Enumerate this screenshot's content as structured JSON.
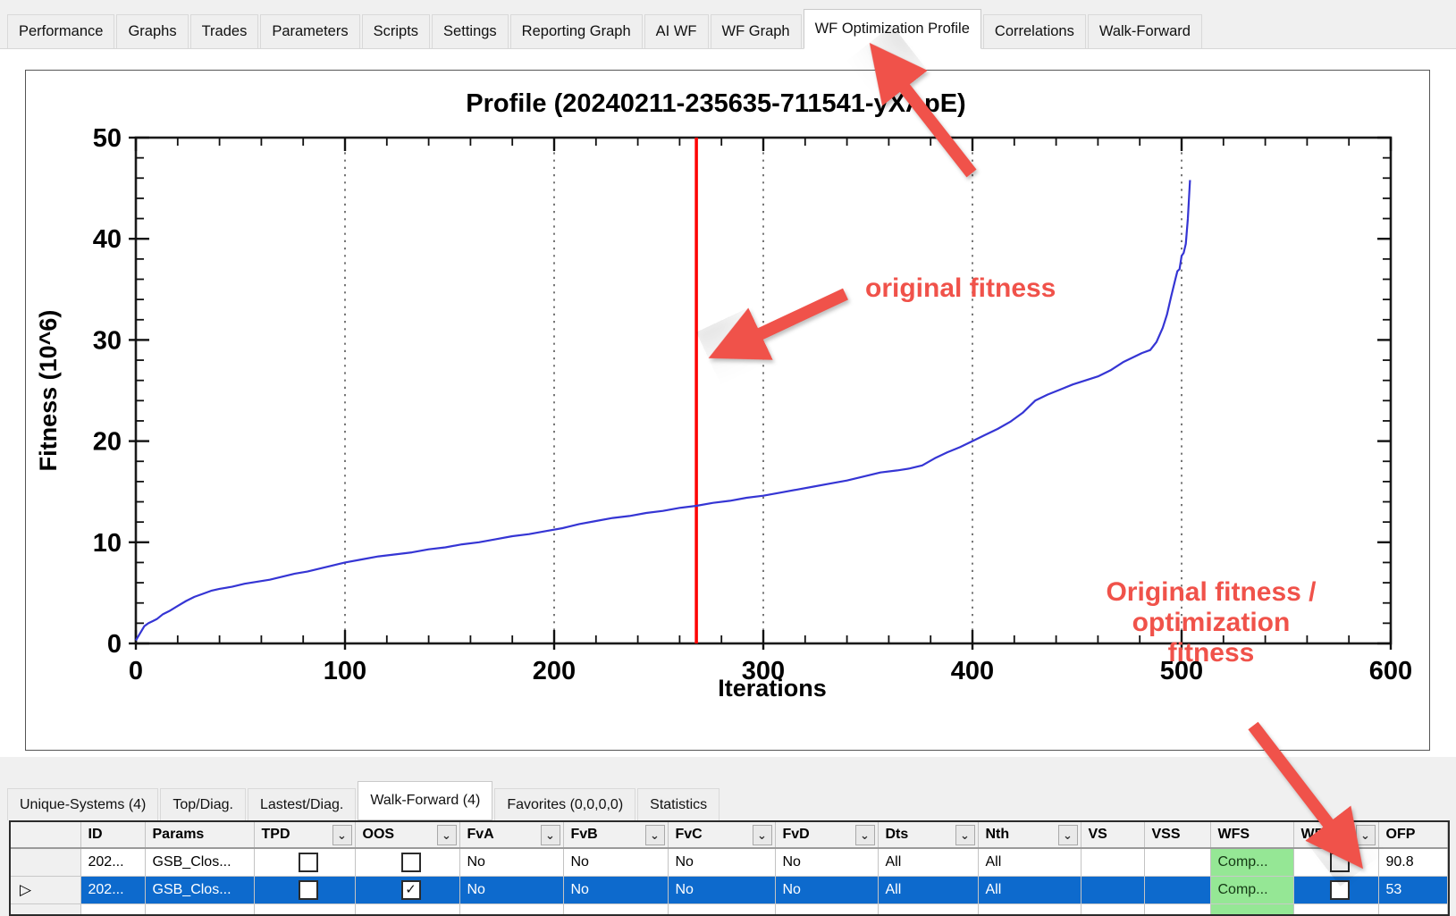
{
  "top_tabs": {
    "items": [
      {
        "label": "Performance",
        "selected": false
      },
      {
        "label": "Graphs",
        "selected": false
      },
      {
        "label": "Trades",
        "selected": false
      },
      {
        "label": "Parameters",
        "selected": false
      },
      {
        "label": "Scripts",
        "selected": false
      },
      {
        "label": "Settings",
        "selected": false
      },
      {
        "label": "Reporting Graph",
        "selected": false
      },
      {
        "label": "AI WF",
        "selected": false
      },
      {
        "label": "WF Graph",
        "selected": false
      },
      {
        "label": "WF Optimization Profile",
        "selected": true
      },
      {
        "label": "Correlations",
        "selected": false
      },
      {
        "label": "Walk-Forward",
        "selected": false
      }
    ]
  },
  "chart_data": {
    "type": "line",
    "title": "Profile (20240211-235635-711541-yXApE)",
    "xlabel": "Iterations",
    "ylabel": "Fitness (10^6)",
    "xlim": [
      0,
      600
    ],
    "ylim": [
      0,
      50
    ],
    "x_ticks": [
      0,
      100,
      200,
      300,
      400,
      500,
      600
    ],
    "y_ticks": [
      0,
      10,
      20,
      30,
      40,
      50
    ],
    "x_minor_step": 20,
    "y_minor_step": 2,
    "gridlines_x": [
      100,
      200,
      300,
      400,
      500
    ],
    "grid": "vertical-dotted-only",
    "legend": "none",
    "line_color": "#3535d4",
    "vline": {
      "x": 268,
      "color": "#fe0000",
      "meaning": "original fitness"
    },
    "series": [
      {
        "name": "sorted WF optimization fitness profile",
        "points": [
          [
            0,
            0.3
          ],
          [
            2,
            1.0
          ],
          [
            4,
            1.7
          ],
          [
            6,
            2.0
          ],
          [
            8,
            2.2
          ],
          [
            10,
            2.4
          ],
          [
            13,
            2.9
          ],
          [
            16,
            3.2
          ],
          [
            20,
            3.7
          ],
          [
            24,
            4.2
          ],
          [
            28,
            4.6
          ],
          [
            32,
            4.9
          ],
          [
            36,
            5.2
          ],
          [
            40,
            5.4
          ],
          [
            46,
            5.6
          ],
          [
            52,
            5.9
          ],
          [
            58,
            6.1
          ],
          [
            64,
            6.3
          ],
          [
            70,
            6.6
          ],
          [
            76,
            6.9
          ],
          [
            82,
            7.1
          ],
          [
            88,
            7.4
          ],
          [
            94,
            7.7
          ],
          [
            100,
            8.0
          ],
          [
            108,
            8.3
          ],
          [
            116,
            8.6
          ],
          [
            124,
            8.8
          ],
          [
            132,
            9.0
          ],
          [
            140,
            9.3
          ],
          [
            148,
            9.5
          ],
          [
            156,
            9.8
          ],
          [
            164,
            10.0
          ],
          [
            172,
            10.3
          ],
          [
            180,
            10.6
          ],
          [
            188,
            10.8
          ],
          [
            196,
            11.1
          ],
          [
            204,
            11.4
          ],
          [
            212,
            11.8
          ],
          [
            220,
            12.1
          ],
          [
            228,
            12.4
          ],
          [
            236,
            12.6
          ],
          [
            244,
            12.9
          ],
          [
            252,
            13.1
          ],
          [
            260,
            13.4
          ],
          [
            268,
            13.6
          ],
          [
            276,
            13.9
          ],
          [
            284,
            14.1
          ],
          [
            292,
            14.4
          ],
          [
            300,
            14.6
          ],
          [
            308,
            14.9
          ],
          [
            316,
            15.2
          ],
          [
            324,
            15.5
          ],
          [
            332,
            15.8
          ],
          [
            340,
            16.1
          ],
          [
            348,
            16.5
          ],
          [
            356,
            16.9
          ],
          [
            364,
            17.1
          ],
          [
            370,
            17.3
          ],
          [
            376,
            17.6
          ],
          [
            382,
            18.3
          ],
          [
            388,
            18.9
          ],
          [
            394,
            19.4
          ],
          [
            400,
            20.0
          ],
          [
            406,
            20.6
          ],
          [
            412,
            21.2
          ],
          [
            418,
            21.9
          ],
          [
            424,
            22.8
          ],
          [
            430,
            24.0
          ],
          [
            436,
            24.6
          ],
          [
            442,
            25.1
          ],
          [
            448,
            25.6
          ],
          [
            454,
            26.0
          ],
          [
            460,
            26.4
          ],
          [
            466,
            27.0
          ],
          [
            472,
            27.8
          ],
          [
            477,
            28.3
          ],
          [
            481,
            28.7
          ],
          [
            485,
            29.0
          ],
          [
            488,
            29.8
          ],
          [
            491,
            31.2
          ],
          [
            493,
            32.5
          ],
          [
            495,
            34.3
          ],
          [
            497,
            36.0
          ],
          [
            498,
            36.8
          ],
          [
            499,
            37.0
          ],
          [
            500,
            38.3
          ],
          [
            501,
            38.6
          ],
          [
            502,
            39.5
          ],
          [
            503,
            42.0
          ],
          [
            504,
            45.8
          ]
        ]
      }
    ]
  },
  "annotations": {
    "accent_color": "#f0524a",
    "original_fitness_label": "original fitness",
    "ofp_line1": "Original fitness /",
    "ofp_line2": "optimization",
    "ofp_line3": "fitness"
  },
  "bottom_tabs": {
    "items": [
      {
        "label": "Unique-Systems (4)",
        "selected": false
      },
      {
        "label": "Top/Diag.",
        "selected": false
      },
      {
        "label": "Lastest/Diag.",
        "selected": false
      },
      {
        "label": "Walk-Forward (4)",
        "selected": true
      },
      {
        "label": "Favorites (0,0,0,0)",
        "selected": false
      },
      {
        "label": "Statistics",
        "selected": false
      }
    ]
  },
  "table": {
    "columns": [
      {
        "label": "",
        "width": 78,
        "filter": false
      },
      {
        "label": "ID",
        "width": 72,
        "filter": false
      },
      {
        "label": "Params",
        "width": 122,
        "filter": false
      },
      {
        "label": "TPD",
        "width": 113,
        "filter": true
      },
      {
        "label": "OOS",
        "width": 117,
        "filter": true
      },
      {
        "label": "FvA",
        "width": 116,
        "filter": true
      },
      {
        "label": "FvB",
        "width": 117,
        "filter": true
      },
      {
        "label": "FvC",
        "width": 120,
        "filter": true
      },
      {
        "label": "FvD",
        "width": 115,
        "filter": true
      },
      {
        "label": "Dts",
        "width": 112,
        "filter": true
      },
      {
        "label": "Nth",
        "width": 115,
        "filter": true
      },
      {
        "label": "VS",
        "width": 71,
        "filter": false
      },
      {
        "label": "VSS",
        "width": 74,
        "filter": false
      },
      {
        "label": "WFS",
        "width": 93,
        "filter": false
      },
      {
        "label": "WFP",
        "width": 95,
        "filter": true
      },
      {
        "label": "OFP",
        "width": 77,
        "filter": false
      }
    ],
    "rows": [
      {
        "selected": false,
        "marker": "",
        "cells": [
          {
            "t": "202..."
          },
          {
            "t": "GSB_Clos..."
          },
          {
            "cb": false
          },
          {
            "cb": false
          },
          {
            "t": "No"
          },
          {
            "t": "No"
          },
          {
            "t": "No"
          },
          {
            "t": "No"
          },
          {
            "t": "All"
          },
          {
            "t": "All"
          },
          {
            "t": ""
          },
          {
            "t": ""
          },
          {
            "t": "Comp...",
            "green": true
          },
          {
            "cb": false
          },
          {
            "t": "90.8"
          }
        ]
      },
      {
        "selected": true,
        "marker": "▷",
        "cells": [
          {
            "t": "202..."
          },
          {
            "t": "GSB_Clos..."
          },
          {
            "cb": false
          },
          {
            "cb": true
          },
          {
            "t": "No"
          },
          {
            "t": "No"
          },
          {
            "t": "No"
          },
          {
            "t": "No"
          },
          {
            "t": "All"
          },
          {
            "t": "All"
          },
          {
            "t": ""
          },
          {
            "t": ""
          },
          {
            "t": "Comp...",
            "green": true
          },
          {
            "cb": false
          },
          {
            "t": "53"
          }
        ]
      },
      {
        "selected": false,
        "marker": "",
        "partial": true,
        "cells": [
          {
            "t": ""
          },
          {
            "t": ""
          },
          {
            "t": ""
          },
          {
            "t": ""
          },
          {
            "t": ""
          },
          {
            "t": ""
          },
          {
            "t": ""
          },
          {
            "t": ""
          },
          {
            "t": ""
          },
          {
            "t": ""
          },
          {
            "t": ""
          },
          {
            "t": ""
          },
          {
            "t": "",
            "green": true
          },
          {
            "t": ""
          },
          {
            "t": ""
          }
        ]
      }
    ]
  }
}
